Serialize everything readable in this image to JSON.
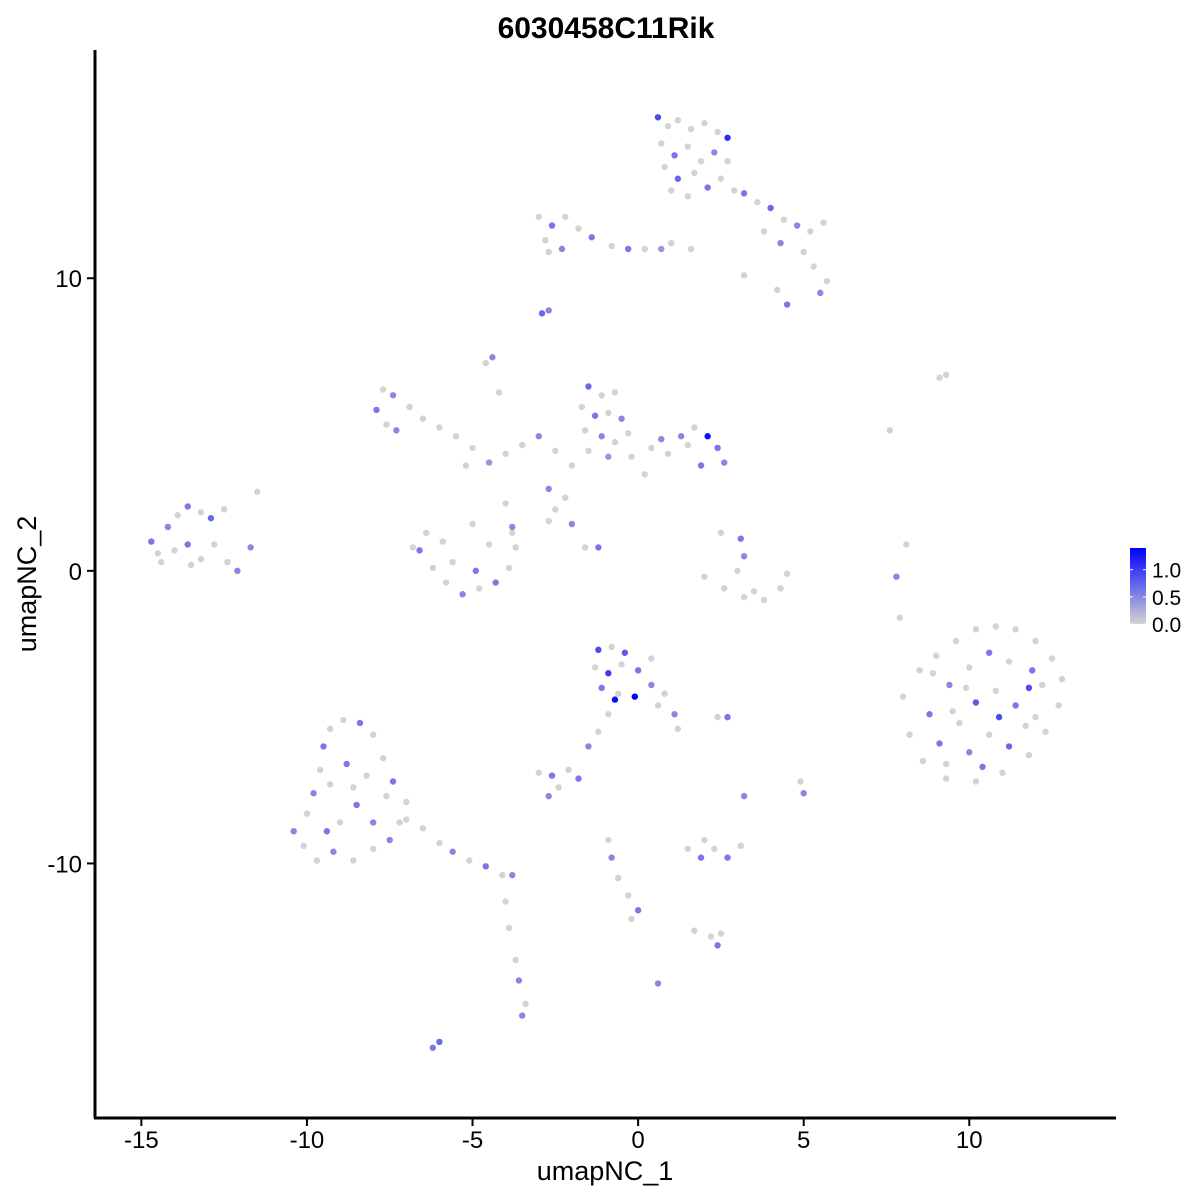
{
  "chart_data": {
    "type": "scatter",
    "title": "6030458C11Rik",
    "xlabel": "umapNC_1",
    "ylabel": "umapNC_2",
    "xlim": [
      -16.4,
      14.4
    ],
    "ylim": [
      -18.7,
      17.8
    ],
    "xticks": [
      -15,
      -10,
      -5,
      0,
      5,
      10
    ],
    "yticks": [
      -10,
      0,
      10
    ],
    "xtick_labels": [
      "-15",
      "-10",
      "-5",
      "0",
      "5",
      "10"
    ],
    "ytick_labels": [
      "-10",
      "0",
      "10"
    ],
    "grid": false,
    "legend": {
      "placement": "right",
      "ticks": [
        0,
        0.5,
        1.0
      ],
      "tick_labels": [
        "0.0",
        "0.5",
        "1.0"
      ],
      "range": [
        0,
        1.4
      ]
    },
    "colors": {
      "low": "#d3d3d3",
      "high": "#0000ff"
    },
    "points": [
      [
        0.6,
        15.5,
        0.9
      ],
      [
        0.9,
        15.2,
        0
      ],
      [
        1.2,
        15.4,
        0
      ],
      [
        1.6,
        15.1,
        0
      ],
      [
        2.0,
        15.3,
        0
      ],
      [
        2.4,
        15.0,
        0
      ],
      [
        2.7,
        14.8,
        1.1
      ],
      [
        0.7,
        14.6,
        0
      ],
      [
        1.1,
        14.2,
        0.6
      ],
      [
        1.5,
        14.5,
        0
      ],
      [
        1.9,
        14.0,
        0
      ],
      [
        2.3,
        14.3,
        0.5
      ],
      [
        2.7,
        14.0,
        0
      ],
      [
        0.8,
        13.8,
        0
      ],
      [
        1.2,
        13.4,
        0.7
      ],
      [
        1.7,
        13.6,
        0
      ],
      [
        2.1,
        13.1,
        0.6
      ],
      [
        2.5,
        13.4,
        0
      ],
      [
        2.9,
        13.0,
        0
      ],
      [
        1.0,
        13.0,
        0
      ],
      [
        1.5,
        12.8,
        0
      ],
      [
        3.2,
        12.9,
        0.6
      ],
      [
        3.6,
        12.6,
        0
      ],
      [
        4.0,
        12.4,
        0.7
      ],
      [
        4.4,
        12.0,
        0
      ],
      [
        4.8,
        11.8,
        0.5
      ],
      [
        5.2,
        11.6,
        0
      ],
      [
        5.6,
        11.9,
        0
      ],
      [
        3.8,
        11.6,
        0
      ],
      [
        4.3,
        11.2,
        0.5
      ],
      [
        5.0,
        10.9,
        0
      ],
      [
        5.3,
        10.4,
        0
      ],
      [
        5.7,
        9.9,
        0
      ],
      [
        5.5,
        9.5,
        0.5
      ],
      [
        4.5,
        9.1,
        0.6
      ],
      [
        4.2,
        9.6,
        0
      ],
      [
        3.2,
        10.1,
        0
      ],
      [
        1.6,
        11.0,
        0
      ],
      [
        1.0,
        11.2,
        0
      ],
      [
        0.7,
        11.0,
        0.4
      ],
      [
        -3.0,
        12.1,
        0
      ],
      [
        -2.6,
        11.8,
        0.6
      ],
      [
        -2.2,
        12.1,
        0
      ],
      [
        -1.8,
        11.7,
        0
      ],
      [
        -2.8,
        11.3,
        0
      ],
      [
        -2.3,
        11.0,
        0.5
      ],
      [
        -1.4,
        11.4,
        0.6
      ],
      [
        -0.8,
        11.1,
        0
      ],
      [
        -0.3,
        11.0,
        0.6
      ],
      [
        0.2,
        11.0,
        0
      ],
      [
        -2.7,
        10.9,
        0
      ],
      [
        -2.9,
        8.8,
        0.7
      ],
      [
        -2.7,
        8.9,
        0.5
      ],
      [
        -4.4,
        7.3,
        0.5
      ],
      [
        -4.6,
        7.1,
        0
      ],
      [
        -4.2,
        6.1,
        0
      ],
      [
        -7.7,
        6.2,
        0
      ],
      [
        -7.4,
        6.0,
        0.5
      ],
      [
        -7.9,
        5.5,
        0.6
      ],
      [
        -7.6,
        5.0,
        0
      ],
      [
        -7.3,
        4.8,
        0.5
      ],
      [
        -6.9,
        5.6,
        0
      ],
      [
        -6.5,
        5.2,
        0
      ],
      [
        -6.0,
        4.9,
        0
      ],
      [
        -5.5,
        4.6,
        0
      ],
      [
        -5.0,
        4.2,
        0
      ],
      [
        -4.5,
        3.7,
        0.4
      ],
      [
        -4.0,
        4.0,
        0
      ],
      [
        -3.5,
        4.3,
        0
      ],
      [
        -3.0,
        4.6,
        0.5
      ],
      [
        -2.5,
        4.1,
        0
      ],
      [
        -5.2,
        3.6,
        0
      ],
      [
        -2.7,
        2.8,
        0.5
      ],
      [
        -2.2,
        2.5,
        0
      ],
      [
        -2.5,
        2.1,
        0
      ],
      [
        -4.0,
        2.3,
        0
      ],
      [
        -3.8,
        1.5,
        0.5
      ],
      [
        -2.7,
        1.7,
        0
      ],
      [
        -2.0,
        1.6,
        0.5
      ],
      [
        -1.6,
        0.8,
        0
      ],
      [
        -1.2,
        0.8,
        0.6
      ],
      [
        -1.5,
        6.3,
        0.7
      ],
      [
        -1.1,
        6.0,
        0
      ],
      [
        -0.7,
        6.1,
        0
      ],
      [
        -1.7,
        5.6,
        0
      ],
      [
        -1.3,
        5.3,
        0.6
      ],
      [
        -0.9,
        5.4,
        0
      ],
      [
        -0.5,
        5.2,
        0.5
      ],
      [
        -1.6,
        4.8,
        0
      ],
      [
        -1.1,
        4.6,
        0.5
      ],
      [
        -0.7,
        4.4,
        0
      ],
      [
        -0.3,
        4.7,
        0
      ],
      [
        -1.5,
        4.1,
        0
      ],
      [
        -0.9,
        3.9,
        0.4
      ],
      [
        -0.2,
        3.9,
        0
      ],
      [
        0.4,
        4.2,
        0
      ],
      [
        0.9,
        4.0,
        0
      ],
      [
        1.3,
        4.6,
        0.5
      ],
      [
        1.7,
        4.9,
        0
      ],
      [
        2.1,
        4.6,
        1.3
      ],
      [
        2.4,
        4.2,
        0.6
      ],
      [
        2.6,
        3.7,
        0.5
      ],
      [
        1.9,
        3.6,
        0.6
      ],
      [
        1.5,
        4.3,
        0
      ],
      [
        0.7,
        4.5,
        0.5
      ],
      [
        -2.0,
        3.6,
        0
      ],
      [
        0.2,
        3.3,
        0
      ],
      [
        -6.4,
        1.3,
        0
      ],
      [
        -6.6,
        0.7,
        0.6
      ],
      [
        -6.2,
        0.1,
        0
      ],
      [
        -5.8,
        -0.4,
        0
      ],
      [
        -5.3,
        -0.8,
        0.5
      ],
      [
        -4.8,
        -0.6,
        0
      ],
      [
        -4.3,
        -0.4,
        0.6
      ],
      [
        -3.9,
        0.1,
        0
      ],
      [
        -3.7,
        0.8,
        0
      ],
      [
        -3.8,
        1.3,
        0
      ],
      [
        -5.6,
        0.3,
        0
      ],
      [
        -4.9,
        0.0,
        0.6
      ],
      [
        -5.9,
        1.0,
        0
      ],
      [
        -4.5,
        0.9,
        0
      ],
      [
        -5.0,
        1.6,
        0
      ],
      [
        -6.8,
        0.8,
        0
      ],
      [
        -14.7,
        1.0,
        0.6
      ],
      [
        -14.5,
        0.6,
        0
      ],
      [
        -14.2,
        1.5,
        0.5
      ],
      [
        -13.9,
        1.9,
        0
      ],
      [
        -13.6,
        2.2,
        0.6
      ],
      [
        -13.2,
        2.0,
        0
      ],
      [
        -12.9,
        1.8,
        0.7
      ],
      [
        -14.0,
        0.7,
        0
      ],
      [
        -13.6,
        0.9,
        0.6
      ],
      [
        -13.2,
        0.4,
        0
      ],
      [
        -12.8,
        0.9,
        0
      ],
      [
        -12.4,
        0.3,
        0
      ],
      [
        -12.1,
        0.0,
        0.5
      ],
      [
        -13.5,
        0.2,
        0
      ],
      [
        -14.4,
        0.3,
        0
      ],
      [
        -11.5,
        2.7,
        0
      ],
      [
        -11.7,
        0.8,
        0.5
      ],
      [
        -12.5,
        2.1,
        0
      ],
      [
        2.5,
        1.3,
        0
      ],
      [
        3.1,
        1.1,
        0.6
      ],
      [
        3.2,
        0.5,
        0.5
      ],
      [
        3.0,
        0.0,
        0
      ],
      [
        2.0,
        -0.2,
        0
      ],
      [
        2.6,
        -0.6,
        0
      ],
      [
        3.2,
        -0.9,
        0
      ],
      [
        3.8,
        -1.0,
        0
      ],
      [
        4.3,
        -0.6,
        0
      ],
      [
        4.5,
        -0.1,
        0
      ],
      [
        3.5,
        -0.7,
        0
      ],
      [
        7.6,
        4.8,
        0
      ],
      [
        8.1,
        0.9,
        0
      ],
      [
        7.8,
        -0.2,
        0.5
      ],
      [
        7.9,
        -1.6,
        0
      ],
      [
        9.1,
        6.6,
        0
      ],
      [
        9.3,
        6.7,
        0
      ],
      [
        8.0,
        -4.3,
        0
      ],
      [
        8.5,
        -3.4,
        0
      ],
      [
        9.0,
        -2.9,
        0
      ],
      [
        9.6,
        -2.4,
        0
      ],
      [
        10.2,
        -2.0,
        0
      ],
      [
        10.8,
        -1.9,
        0
      ],
      [
        11.4,
        -2.0,
        0
      ],
      [
        12.0,
        -2.4,
        0
      ],
      [
        12.5,
        -3.0,
        0
      ],
      [
        12.8,
        -3.7,
        0
      ],
      [
        12.7,
        -4.6,
        0
      ],
      [
        12.3,
        -5.5,
        0
      ],
      [
        11.8,
        -6.3,
        0
      ],
      [
        11.0,
        -6.9,
        0
      ],
      [
        10.2,
        -7.2,
        0
      ],
      [
        9.3,
        -7.1,
        0
      ],
      [
        8.6,
        -6.5,
        0
      ],
      [
        8.2,
        -5.6,
        0
      ],
      [
        8.8,
        -4.9,
        0.6
      ],
      [
        9.4,
        -3.9,
        0.5
      ],
      [
        10.0,
        -3.3,
        0
      ],
      [
        10.6,
        -2.8,
        0.6
      ],
      [
        11.2,
        -3.1,
        0
      ],
      [
        11.9,
        -3.4,
        0.6
      ],
      [
        9.1,
        -5.9,
        0.6
      ],
      [
        9.7,
        -5.2,
        0
      ],
      [
        10.2,
        -4.5,
        0.8
      ],
      [
        10.8,
        -4.1,
        0
      ],
      [
        11.4,
        -4.6,
        0.6
      ],
      [
        12.0,
        -5.0,
        0
      ],
      [
        10.0,
        -6.2,
        0.5
      ],
      [
        10.6,
        -5.6,
        0
      ],
      [
        11.2,
        -6.0,
        0.7
      ],
      [
        11.7,
        -5.3,
        0
      ],
      [
        9.3,
        -6.6,
        0
      ],
      [
        10.4,
        -6.7,
        0.6
      ],
      [
        11.8,
        -4.0,
        0.9
      ],
      [
        9.9,
        -4.0,
        0
      ],
      [
        10.9,
        -5.0,
        0.9
      ],
      [
        12.2,
        -3.9,
        0
      ],
      [
        8.9,
        -3.5,
        0
      ],
      [
        9.5,
        -4.8,
        0
      ],
      [
        -10.4,
        -8.9,
        0.5
      ],
      [
        -10.1,
        -9.4,
        0
      ],
      [
        -9.7,
        -9.9,
        0
      ],
      [
        -9.2,
        -9.6,
        0.5
      ],
      [
        -8.6,
        -9.9,
        0
      ],
      [
        -8.0,
        -9.5,
        0
      ],
      [
        -7.5,
        -9.2,
        0.5
      ],
      [
        -7.2,
        -8.6,
        0
      ],
      [
        -7.0,
        -7.9,
        0
      ],
      [
        -7.4,
        -7.2,
        0.6
      ],
      [
        -7.7,
        -6.4,
        0
      ],
      [
        -8.0,
        -5.6,
        0
      ],
      [
        -8.4,
        -5.2,
        0.6
      ],
      [
        -8.9,
        -5.1,
        0
      ],
      [
        -9.3,
        -5.4,
        0
      ],
      [
        -9.5,
        -6.0,
        0.6
      ],
      [
        -9.6,
        -6.8,
        0
      ],
      [
        -9.8,
        -7.6,
        0.5
      ],
      [
        -10.0,
        -8.3,
        0
      ],
      [
        -9.3,
        -7.3,
        0
      ],
      [
        -8.8,
        -6.6,
        0.6
      ],
      [
        -8.2,
        -7.0,
        0
      ],
      [
        -8.5,
        -8.0,
        0.6
      ],
      [
        -9.0,
        -8.6,
        0
      ],
      [
        -8.0,
        -8.6,
        0.5
      ],
      [
        -7.6,
        -7.7,
        0
      ],
      [
        -9.4,
        -8.9,
        0.6
      ],
      [
        -8.6,
        -7.4,
        0
      ],
      [
        -7.0,
        -8.5,
        0
      ],
      [
        -6.5,
        -8.8,
        0
      ],
      [
        -6.0,
        -9.3,
        0
      ],
      [
        -5.6,
        -9.6,
        0.5
      ],
      [
        -5.1,
        -9.9,
        0
      ],
      [
        -4.6,
        -10.1,
        0.6
      ],
      [
        -4.1,
        -10.4,
        0
      ],
      [
        -3.8,
        -10.4,
        0.5
      ],
      [
        -4.0,
        -11.3,
        0
      ],
      [
        -3.9,
        -12.2,
        0
      ],
      [
        -3.7,
        -13.3,
        0
      ],
      [
        -3.6,
        -14.0,
        0.5
      ],
      [
        -3.4,
        -14.8,
        0
      ],
      [
        -3.5,
        -15.2,
        0.5
      ],
      [
        -6.0,
        -16.1,
        0.7
      ],
      [
        -6.2,
        -16.3,
        0.6
      ],
      [
        -1.2,
        -2.7,
        0.9
      ],
      [
        -0.8,
        -2.6,
        0
      ],
      [
        -0.4,
        -2.8,
        0.8
      ],
      [
        -1.3,
        -3.3,
        0
      ],
      [
        -0.9,
        -3.5,
        1.0
      ],
      [
        -0.5,
        -3.2,
        0
      ],
      [
        0.0,
        -3.4,
        0.6
      ],
      [
        0.4,
        -3.0,
        0
      ],
      [
        -1.1,
        -4.0,
        0.6
      ],
      [
        -0.6,
        -4.2,
        0
      ],
      [
        -0.1,
        -4.3,
        1.4
      ],
      [
        0.4,
        -3.9,
        0.5
      ],
      [
        0.8,
        -4.2,
        0
      ],
      [
        -0.7,
        -4.4,
        1.3
      ],
      [
        0.6,
        -4.6,
        0
      ],
      [
        1.1,
        -4.9,
        0.5
      ],
      [
        1.2,
        -5.4,
        0
      ],
      [
        -0.9,
        -4.9,
        0
      ],
      [
        -1.2,
        -5.5,
        0
      ],
      [
        -1.5,
        -6.0,
        0.5
      ],
      [
        2.4,
        -5.0,
        0
      ],
      [
        2.7,
        -5.0,
        0.6
      ],
      [
        -3.0,
        -6.9,
        0
      ],
      [
        -2.6,
        -7.0,
        0.6
      ],
      [
        -2.1,
        -6.8,
        0
      ],
      [
        -1.8,
        -7.1,
        0.6
      ],
      [
        -2.4,
        -7.4,
        0
      ],
      [
        -2.7,
        -7.7,
        0.5
      ],
      [
        1.5,
        -9.5,
        0
      ],
      [
        1.9,
        -9.8,
        0.6
      ],
      [
        2.3,
        -9.5,
        0
      ],
      [
        2.7,
        -9.8,
        0.6
      ],
      [
        3.1,
        -9.4,
        0
      ],
      [
        2.0,
        -9.2,
        0
      ],
      [
        3.2,
        -7.7,
        0.5
      ],
      [
        5.0,
        -7.6,
        0.5
      ],
      [
        4.9,
        -7.2,
        0
      ],
      [
        -0.9,
        -9.2,
        0
      ],
      [
        -0.8,
        -9.8,
        0.5
      ],
      [
        -0.6,
        -10.5,
        0
      ],
      [
        -0.3,
        -11.1,
        0
      ],
      [
        0.0,
        -11.6,
        0.6
      ],
      [
        -0.2,
        -11.9,
        0
      ],
      [
        1.7,
        -12.3,
        0
      ],
      [
        2.2,
        -12.5,
        0
      ],
      [
        2.4,
        -12.8,
        0.6
      ],
      [
        2.5,
        -12.4,
        0
      ],
      [
        0.6,
        -14.1,
        0.5
      ]
    ]
  }
}
